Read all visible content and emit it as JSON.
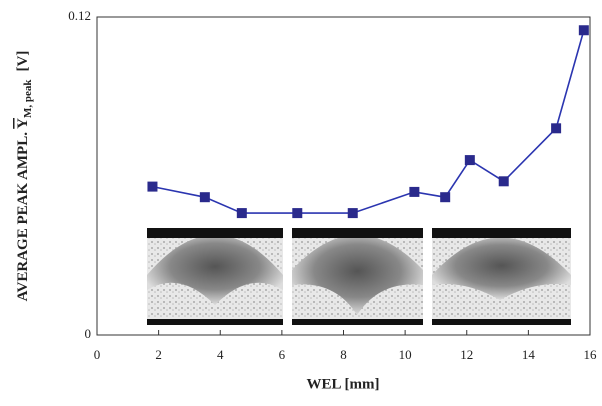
{
  "chart_data": {
    "type": "line",
    "xlabel": "WEL  [mm]",
    "ylabel": {
      "text": "AVERAGE PEAK AMPL.",
      "symbol": "Y",
      "subscript": "M, peak",
      "unit": "[V]"
    },
    "x": [
      1.8,
      3.5,
      4.7,
      6.5,
      8.3,
      10.3,
      11.3,
      12.1,
      13.2,
      14.9,
      15.8
    ],
    "series": [
      {
        "color": "#2b35b0",
        "marker_color": "#2a2a8c",
        "values": [
          0.056,
          0.052,
          0.046,
          0.046,
          0.046,
          0.054,
          0.052,
          0.066,
          0.058,
          0.078,
          0.115
        ]
      }
    ],
    "xlim": [
      0,
      16
    ],
    "xticks": [
      0,
      2,
      4,
      6,
      8,
      10,
      12,
      14,
      16
    ],
    "ylim": [
      0,
      0.12
    ],
    "yticks": [
      0,
      0.12
    ]
  }
}
